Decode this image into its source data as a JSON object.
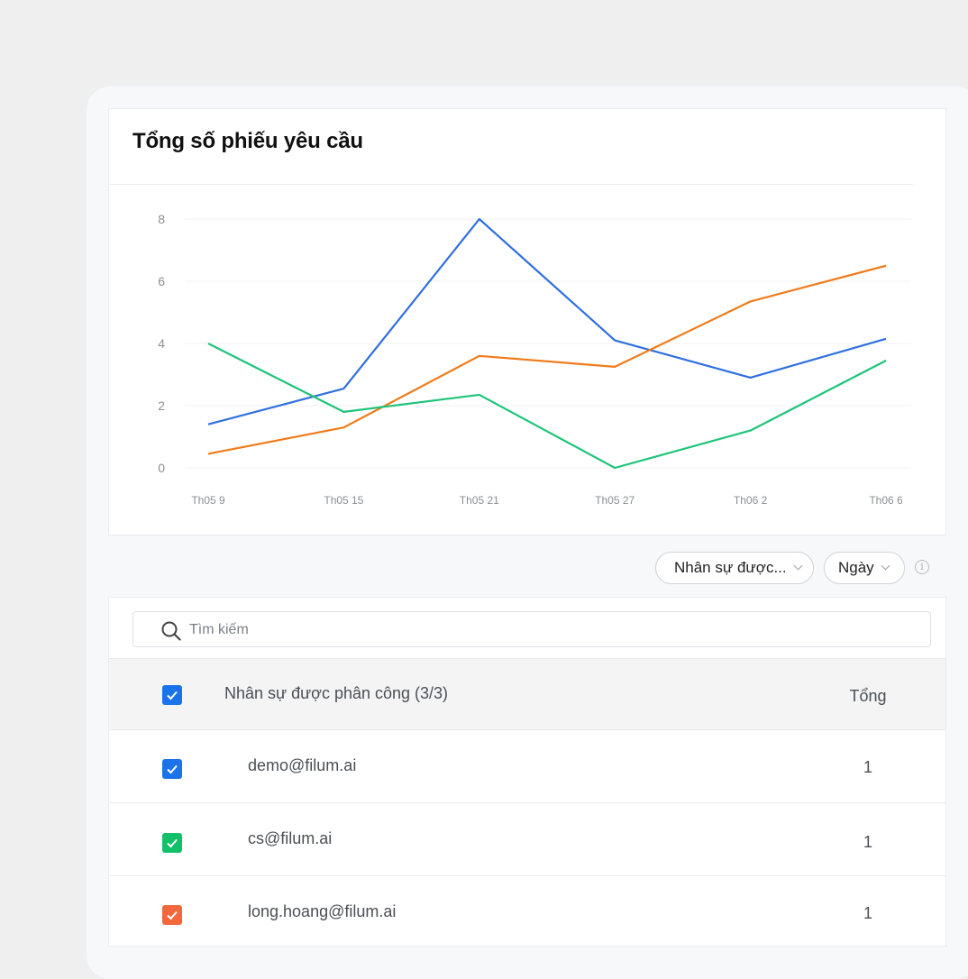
{
  "chart_data": {
    "type": "line",
    "title": "Tổng số phiếu yêu cầu",
    "x": [
      "Th05 9",
      "Th05 15",
      "Th05 21",
      "Th05 27",
      "Th06 2",
      "Th06 6"
    ],
    "y_ticks": [
      0,
      2,
      4,
      6,
      8
    ],
    "ylim": [
      0,
      8
    ],
    "grid": true,
    "series": [
      {
        "color": "#2f6fe0",
        "values": [
          1.4,
          2.55,
          8.0,
          4.1,
          2.9,
          4.15
        ]
      },
      {
        "color": "#f07b1a",
        "values": [
          0.45,
          1.3,
          3.6,
          3.25,
          5.35,
          6.5
        ]
      },
      {
        "color": "#1ec47a",
        "values": [
          4.0,
          1.8,
          2.35,
          0.0,
          1.2,
          3.45
        ]
      }
    ]
  },
  "filters": {
    "assignee_label": "Nhân sự được...",
    "period_label": "Ngày"
  },
  "search": {
    "placeholder": "Tìm kiếm"
  },
  "table": {
    "header_name": "Nhân sự được phân công (3/3)",
    "header_total": "Tổng",
    "header_checkbox_color": "#1a73e8",
    "rows": [
      {
        "name": "demo@filum.ai",
        "total": "1",
        "color": "#1a73e8"
      },
      {
        "name": "cs@filum.ai",
        "total": "1",
        "color": "#12c069"
      },
      {
        "name": "long.hoang@filum.ai",
        "total": "1",
        "color": "#f0683c"
      }
    ]
  }
}
